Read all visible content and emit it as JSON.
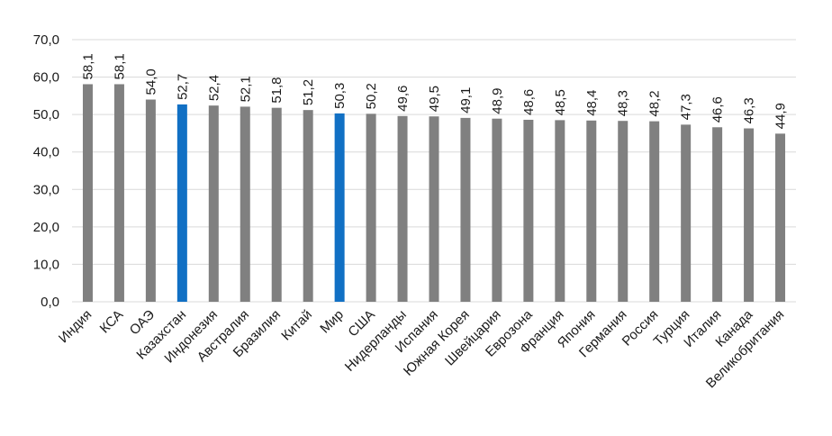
{
  "chart_data": {
    "type": "bar",
    "title": "",
    "xlabel": "",
    "ylabel": "",
    "ylim": [
      0,
      70
    ],
    "yticks": [
      "0,0",
      "10,0",
      "20,0",
      "30,0",
      "40,0",
      "50,0",
      "60,0",
      "70,0"
    ],
    "grid": true,
    "legend": "none",
    "categories": [
      "Индия",
      "КСА",
      "ОАЭ",
      "Казахстан",
      "Индонезия",
      "Австралия",
      "Бразилия",
      "Китай",
      "Мир",
      "США",
      "Нидерланды",
      "Испания",
      "Южная Корея",
      "Швейцария",
      "Еврозона",
      "Франция",
      "Япония",
      "Германия",
      "Россия",
      "Турция",
      "Италия",
      "Канада",
      "Великобритания"
    ],
    "values": [
      58.1,
      58.1,
      54.0,
      52.7,
      52.4,
      52.1,
      51.8,
      51.2,
      50.3,
      50.2,
      49.6,
      49.5,
      49.1,
      48.9,
      48.6,
      48.5,
      48.4,
      48.3,
      48.2,
      47.3,
      46.6,
      46.3,
      44.9
    ],
    "value_labels": [
      "58,1",
      "58,1",
      "54,0",
      "52,7",
      "52,4",
      "52,1",
      "51,8",
      "51,2",
      "50,3",
      "50,2",
      "49,6",
      "49,5",
      "49,1",
      "48,9",
      "48,6",
      "48,5",
      "48,4",
      "48,3",
      "48,2",
      "47,3",
      "46,6",
      "46,3",
      "44,9"
    ],
    "highlighted": [
      "Казахстан",
      "Мир"
    ],
    "colors": {
      "default": "#808080",
      "highlight": "#1170c4",
      "grid": "#d9d9d9"
    }
  }
}
